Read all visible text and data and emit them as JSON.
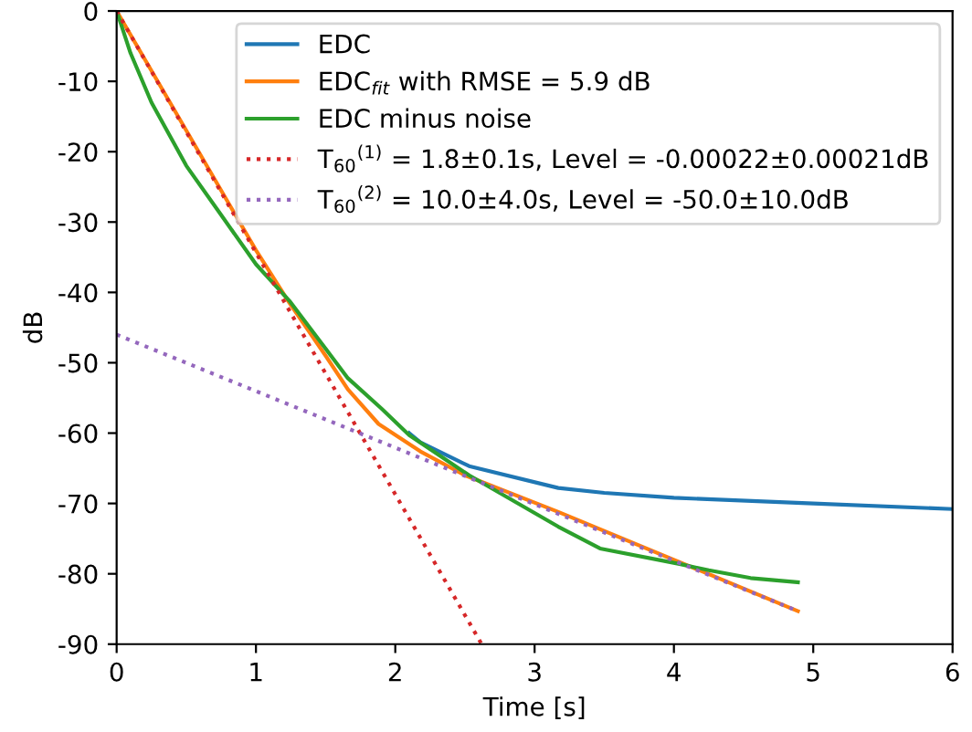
{
  "chart_data": {
    "type": "line",
    "xlabel": "Time [s]",
    "ylabel": "dB",
    "xlim": [
      0,
      6
    ],
    "ylim": [
      -90,
      0
    ],
    "xticks": [
      0,
      1,
      2,
      3,
      4,
      5,
      6
    ],
    "yticks": [
      -90,
      -80,
      -70,
      -60,
      -50,
      -40,
      -30,
      -20,
      -10,
      0
    ],
    "grid": false,
    "legend": "top right",
    "series": [
      {
        "name": "EDC",
        "color": "#1f77b4",
        "line_style": "solid",
        "x": [
          2.1,
          2.18,
          2.53,
          3.17,
          3.5,
          4,
          5,
          6
        ],
        "values": [
          -60,
          -61.3,
          -64.7,
          -67.8,
          -68.5,
          -69.2,
          -70,
          -70.8
        ]
      },
      {
        "name": "EDC$_{fit}$ with RMSE = 5.9 dB",
        "color": "#ff7f0e",
        "line_style": "solid",
        "x": [
          0,
          0.5,
          1.0,
          1.24,
          1.5,
          1.66,
          1.88,
          2.18,
          2.5,
          3.17,
          4.89
        ],
        "values": [
          0,
          -17,
          -34,
          -41.5,
          -49,
          -53.8,
          -58.7,
          -62.6,
          -66,
          -71.2,
          -85.3
        ]
      },
      {
        "name": "EDC minus noise",
        "color": "#2ca02c",
        "line_style": "solid",
        "x": [
          0,
          0.1,
          0.25,
          0.5,
          0.75,
          1.0,
          1.24,
          1.5,
          1.66,
          1.9,
          2.1,
          2.53,
          3.17,
          3.47,
          4.04,
          4.25,
          4.55,
          4.89
        ],
        "values": [
          0,
          -6,
          -13,
          -22,
          -29,
          -36,
          -41.2,
          -48,
          -52.2,
          -56.5,
          -60.3,
          -66,
          -73.3,
          -76.4,
          -78.6,
          -79.5,
          -80.6,
          -81.2
        ]
      },
      {
        "name": "T$_{60}$$^{(1)}$ = 1.8±0.1s, Level = -0.00022±0.00021dB",
        "color": "#d62728",
        "line_style": "dotted",
        "x": [
          0,
          2.62
        ],
        "values": [
          0,
          -90
        ]
      },
      {
        "name": "T$_{60}$$^{(2)}$ = 10.0±4.0s, Level = -50.0±10.0dB",
        "color": "#9467bd",
        "line_style": "dotted",
        "x": [
          0,
          4.89
        ],
        "values": [
          -46,
          -85.3
        ]
      }
    ]
  }
}
